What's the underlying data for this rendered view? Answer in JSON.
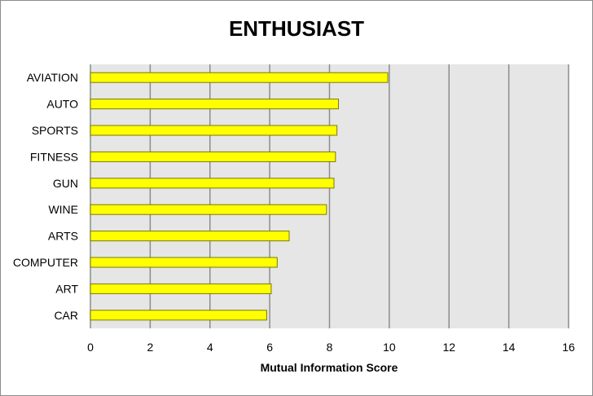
{
  "chart_data": {
    "type": "bar",
    "orientation": "horizontal",
    "title": "ENTHUSIAST",
    "xlabel": "Mutual Information Score",
    "ylabel": "",
    "categories": [
      "AVIATION",
      "AUTO",
      "SPORTS",
      "FITNESS",
      "GUN",
      "WINE",
      "ARTS",
      "COMPUTER",
      "ART",
      "CAR"
    ],
    "values": [
      9.95,
      8.3,
      8.25,
      8.2,
      8.15,
      7.9,
      6.65,
      6.25,
      6.05,
      5.9
    ],
    "xlim": [
      0,
      16
    ],
    "xticks": [
      "0",
      "2",
      "4",
      "6",
      "8",
      "10",
      "12",
      "14",
      "16"
    ],
    "grid": "vertical",
    "legend": "none",
    "colors": {
      "bar_fill": "#ffff00",
      "bar_stroke": "#7a7a00",
      "plot_background": "#e6e6e6",
      "gridline": "#8c8c8c"
    }
  }
}
